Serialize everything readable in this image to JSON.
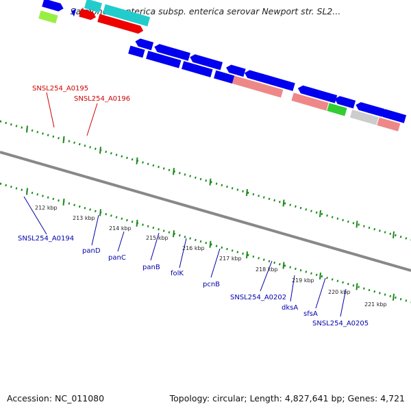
{
  "title": "Salmonella enterica subsp. enterica serovar Newport str. SL2...",
  "footer": {
    "accession": "Accession: NC_011080",
    "topology": "Topology: circular; Length: 4,827,641 bp; Genes: 4,721"
  },
  "colors": {
    "backbone": "#888888",
    "tick": "#1a8a1a",
    "label_red": "#cc0000",
    "label_blue": "#0000aa",
    "blue": "#0000ee",
    "cyan": "#22cccc",
    "red": "#ee0000",
    "salmon": "#ee8888",
    "green": "#33cc33",
    "lime": "#99ee44",
    "gray": "#cccccc",
    "magenta": "#ee2299"
  },
  "ticks": [
    {
      "name": "tick-212kbp",
      "label": "212 kbp"
    },
    {
      "name": "tick-213kbp",
      "label": "213 kbp"
    },
    {
      "name": "tick-214kbp",
      "label": "214 kbp"
    },
    {
      "name": "tick-215kbp",
      "label": "215 kbp"
    },
    {
      "name": "tick-216kbp",
      "label": "216 kbp"
    },
    {
      "name": "tick-217kbp",
      "label": "217 kbp"
    },
    {
      "name": "tick-218kbp",
      "label": "218 kbp"
    },
    {
      "name": "tick-219kbp",
      "label": "219 kbp"
    },
    {
      "name": "tick-220kbp",
      "label": "220 kbp"
    },
    {
      "name": "tick-221kbp",
      "label": "221 kbp"
    }
  ],
  "gene_labels": [
    {
      "name": "label-snsl254-a0195",
      "text": "SNSL254_A0195",
      "color": "red"
    },
    {
      "name": "label-snsl254-a0196",
      "text": "SNSL254_A0196",
      "color": "red"
    },
    {
      "name": "label-snsl254-a0194",
      "text": "SNSL254_A0194",
      "color": "blue"
    },
    {
      "name": "label-pand",
      "text": "panD",
      "color": "blue"
    },
    {
      "name": "label-panc",
      "text": "panC",
      "color": "blue"
    },
    {
      "name": "label-panb",
      "text": "panB",
      "color": "blue"
    },
    {
      "name": "label-folk",
      "text": "folK",
      "color": "blue"
    },
    {
      "name": "label-pcnb",
      "text": "pcnB",
      "color": "blue"
    },
    {
      "name": "label-snsl254-a0202",
      "text": "SNSL254_A0202",
      "color": "blue"
    },
    {
      "name": "label-dksa",
      "text": "dksA",
      "color": "blue"
    },
    {
      "name": "label-sfsa",
      "text": "sfsA",
      "color": "blue"
    },
    {
      "name": "label-snsl254-a0205",
      "text": "SNSL254_A0205",
      "color": "blue"
    }
  ]
}
